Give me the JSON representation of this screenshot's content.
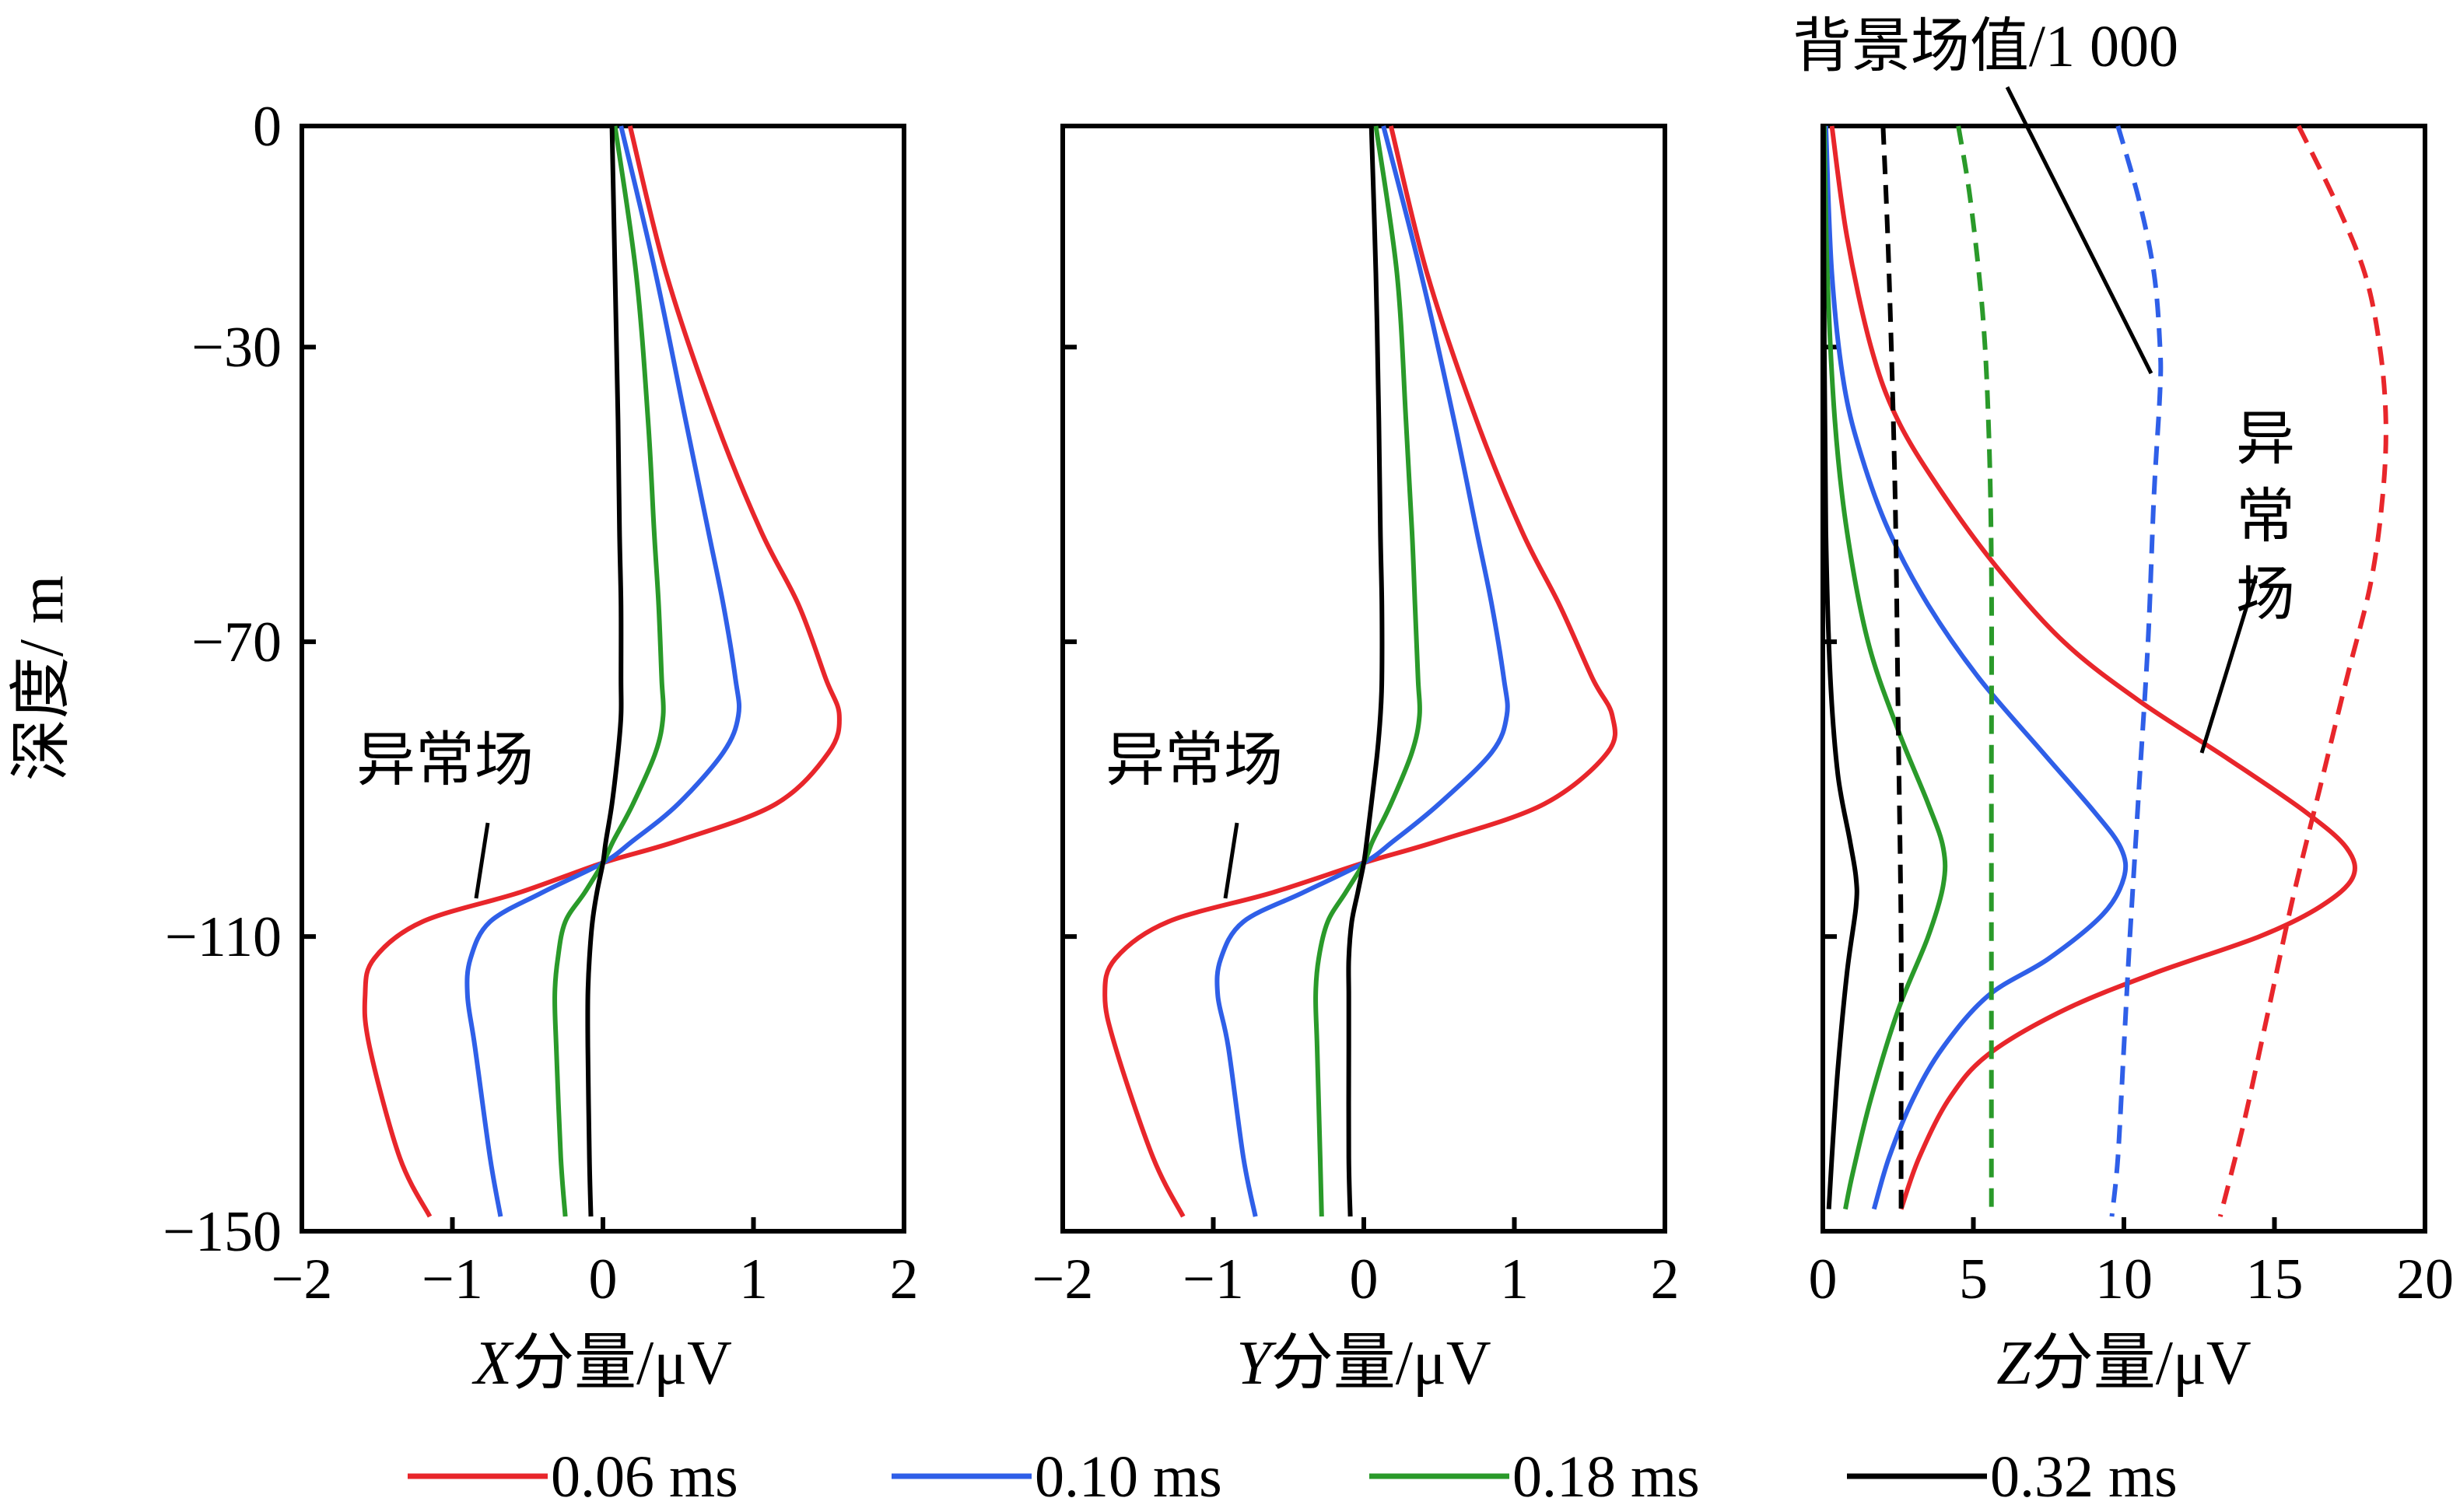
{
  "chart_data": [
    {
      "type": "line",
      "xlabel": "X分量/μV",
      "ylabel": "深度/ m",
      "xlim": [
        -2,
        2
      ],
      "ylim": [
        -150,
        0
      ],
      "xticks": [
        "−2",
        "−1",
        "0",
        "1",
        "2"
      ],
      "yticks": [
        "0",
        "−30",
        "−70",
        "−110",
        "−150"
      ],
      "annotations": [
        "异常场"
      ],
      "series": [
        {
          "name": "0.06 ms",
          "color": "#e8262b",
          "style": "solid",
          "x": [
            0.18,
            0.42,
            0.75,
            1.05,
            1.3,
            1.48,
            1.57,
            1.5,
            1.15,
            0.5,
            0.0,
            -0.55,
            -1.2,
            -1.52,
            -1.58,
            -1.55,
            -1.35,
            -1.15
          ],
          "y": [
            0,
            -20,
            -40,
            -55,
            -65,
            -75,
            -80,
            -85,
            -92,
            -97,
            -100,
            -104,
            -108,
            -113,
            -118,
            -125,
            -140,
            -148
          ]
        },
        {
          "name": "0.10 ms",
          "color": "#2f5fe8",
          "style": "solid",
          "x": [
            0.12,
            0.35,
            0.55,
            0.7,
            0.8,
            0.88,
            0.9,
            0.8,
            0.5,
            0.2,
            0.0,
            -0.4,
            -0.75,
            -0.88,
            -0.9,
            -0.85,
            -0.75,
            -0.68
          ],
          "y": [
            0,
            -20,
            -40,
            -55,
            -65,
            -75,
            -80,
            -85,
            -92,
            -97,
            -100,
            -104,
            -108,
            -113,
            -118,
            -125,
            -140,
            -148
          ]
        },
        {
          "name": "0.18 ms",
          "color": "#2a9a2a",
          "style": "solid",
          "x": [
            0.08,
            0.22,
            0.3,
            0.34,
            0.37,
            0.39,
            0.4,
            0.35,
            0.2,
            0.07,
            0.0,
            -0.12,
            -0.25,
            -0.3,
            -0.32,
            -0.31,
            -0.28,
            -0.25
          ],
          "y": [
            0,
            -20,
            -40,
            -55,
            -65,
            -75,
            -80,
            -85,
            -92,
            -97,
            -100,
            -104,
            -108,
            -113,
            -118,
            -125,
            -140,
            -148
          ]
        },
        {
          "name": "0.32 ms",
          "color": "#000000",
          "style": "solid",
          "x": [
            0.06,
            0.08,
            0.1,
            0.11,
            0.12,
            0.12,
            0.12,
            0.1,
            0.06,
            0.02,
            0.0,
            -0.04,
            -0.07,
            -0.09,
            -0.1,
            -0.1,
            -0.09,
            -0.08
          ],
          "y": [
            0,
            -20,
            -40,
            -55,
            -65,
            -75,
            -80,
            -85,
            -92,
            -97,
            -100,
            -104,
            -108,
            -113,
            -118,
            -125,
            -140,
            -148
          ]
        }
      ]
    },
    {
      "type": "line",
      "xlabel": "Y分量/μV",
      "ylabel": "",
      "xlim": [
        -2,
        2
      ],
      "ylim": [
        -150,
        0
      ],
      "xticks": [
        "−2",
        "−1",
        "0",
        "1",
        "2"
      ],
      "yticks": [],
      "annotations": [
        "异常场"
      ],
      "series": [
        {
          "name": "0.06 ms",
          "color": "#e8262b",
          "style": "solid",
          "x": [
            0.18,
            0.42,
            0.75,
            1.05,
            1.3,
            1.52,
            1.65,
            1.62,
            1.2,
            0.5,
            0.0,
            -0.6,
            -1.3,
            -1.65,
            -1.72,
            -1.65,
            -1.4,
            -1.2
          ],
          "y": [
            0,
            -20,
            -40,
            -55,
            -65,
            -75,
            -80,
            -85,
            -92,
            -97,
            -100,
            -104,
            -108,
            -113,
            -118,
            -125,
            -140,
            -148
          ]
        },
        {
          "name": "0.10 ms",
          "color": "#2f5fe8",
          "style": "solid",
          "x": [
            0.13,
            0.38,
            0.6,
            0.75,
            0.85,
            0.93,
            0.95,
            0.85,
            0.5,
            0.2,
            0.0,
            -0.4,
            -0.8,
            -0.95,
            -0.97,
            -0.9,
            -0.8,
            -0.72
          ],
          "y": [
            0,
            -20,
            -40,
            -55,
            -65,
            -75,
            -80,
            -85,
            -92,
            -97,
            -100,
            -104,
            -108,
            -113,
            -118,
            -125,
            -140,
            -148
          ]
        },
        {
          "name": "0.18 ms",
          "color": "#2a9a2a",
          "style": "solid",
          "x": [
            0.08,
            0.22,
            0.28,
            0.32,
            0.34,
            0.36,
            0.37,
            0.32,
            0.18,
            0.06,
            0.0,
            -0.12,
            -0.24,
            -0.3,
            -0.32,
            -0.31,
            -0.29,
            -0.28
          ],
          "y": [
            0,
            -20,
            -40,
            -55,
            -65,
            -75,
            -80,
            -85,
            -92,
            -97,
            -100,
            -104,
            -108,
            -113,
            -118,
            -125,
            -140,
            -148
          ]
        },
        {
          "name": "0.32 ms",
          "color": "#000000",
          "style": "solid",
          "x": [
            0.05,
            0.08,
            0.1,
            0.11,
            0.12,
            0.12,
            0.11,
            0.09,
            0.05,
            0.02,
            0.0,
            -0.04,
            -0.08,
            -0.1,
            -0.1,
            -0.1,
            -0.1,
            -0.09
          ],
          "y": [
            0,
            -20,
            -40,
            -55,
            -65,
            -75,
            -80,
            -85,
            -92,
            -97,
            -100,
            -104,
            -108,
            -113,
            -118,
            -125,
            -140,
            -148
          ]
        }
      ]
    },
    {
      "type": "line",
      "xlabel": "Z分量/μV",
      "ylabel": "",
      "xlim": [
        0,
        20
      ],
      "ylim": [
        -150,
        0
      ],
      "xticks": [
        "0",
        "5",
        "10",
        "15",
        "20"
      ],
      "yticks": [],
      "annotations": [
        "背景场值/1 000",
        "异常场"
      ],
      "series": [
        {
          "name": "0.06 ms",
          "color": "#e8262b",
          "style": "solid",
          "x": [
            0.3,
            0.8,
            1.6,
            2.5,
            4.0,
            5.8,
            8.0,
            10.5,
            13.5,
            16.0,
            17.4,
            17.6,
            16.5,
            14.5,
            11.0,
            8.0,
            5.5,
            4.2,
            3.2,
            2.6
          ],
          "y": [
            0,
            -15,
            -30,
            -40,
            -50,
            -60,
            -70,
            -78,
            -86,
            -93,
            -98,
            -102,
            -106,
            -110,
            -115,
            -120,
            -126,
            -132,
            -140,
            -147
          ]
        },
        {
          "name": "0.10 ms",
          "color": "#2f5fe8",
          "style": "solid",
          "x": [
            0.1,
            0.3,
            0.7,
            1.3,
            2.2,
            3.5,
            5.2,
            7.3,
            9.0,
            9.9,
            10.0,
            9.3,
            7.5,
            5.5,
            4.0,
            3.0,
            2.2,
            1.7
          ],
          "y": [
            0,
            -20,
            -35,
            -45,
            -55,
            -65,
            -75,
            -85,
            -93,
            -98,
            -102,
            -107,
            -113,
            -118,
            -125,
            -132,
            -140,
            -147
          ]
        },
        {
          "name": "0.18 ms",
          "color": "#2a9a2a",
          "style": "solid",
          "x": [
            0.05,
            0.15,
            0.4,
            0.8,
            1.5,
            2.5,
            3.5,
            4.0,
            4.0,
            3.5,
            2.5,
            1.6,
            1.0,
            0.75
          ],
          "y": [
            0,
            -20,
            -40,
            -55,
            -70,
            -82,
            -92,
            -98,
            -103,
            -110,
            -120,
            -132,
            -142,
            -147
          ]
        },
        {
          "name": "0.32 ms",
          "color": "#000000",
          "style": "solid",
          "x": [
            0.02,
            0.05,
            0.1,
            0.25,
            0.5,
            0.9,
            1.1,
            1.1,
            0.8,
            0.5,
            0.3,
            0.2
          ],
          "y": [
            0,
            -30,
            -55,
            -75,
            -88,
            -97,
            -102,
            -106,
            -115,
            -128,
            -140,
            -147
          ]
        },
        {
          "name": "0.06 ms 背景场值/1 000",
          "color": "#e8262b",
          "style": "dashed",
          "x": [
            15.8,
            17.0,
            18.0,
            18.5,
            18.7,
            18.6,
            18.2,
            17.4,
            16.5,
            15.6,
            14.8,
            14.0,
            13.2
          ],
          "y": [
            0,
            -10,
            -20,
            -30,
            -40,
            -50,
            -62,
            -75,
            -90,
            -105,
            -120,
            -135,
            -148
          ]
        },
        {
          "name": "0.10 ms 背景场值/1 000",
          "color": "#2f5fe8",
          "style": "dashed",
          "x": [
            9.8,
            10.5,
            11.0,
            11.2,
            11.2,
            11.0,
            10.8,
            10.5,
            10.2,
            10.0,
            9.8,
            9.6
          ],
          "y": [
            0,
            -10,
            -20,
            -30,
            -36,
            -50,
            -70,
            -90,
            -110,
            -125,
            -140,
            -148
          ]
        },
        {
          "name": "0.18 ms 背景场值/1 000",
          "color": "#2a9a2a",
          "style": "dashed",
          "x": [
            4.5,
            4.9,
            5.3,
            5.5,
            5.6,
            5.6,
            5.6,
            5.6
          ],
          "y": [
            0,
            -10,
            -25,
            -40,
            -60,
            -90,
            -120,
            -148
          ]
        },
        {
          "name": "0.32 ms 背景场值/1 000",
          "color": "#000000",
          "style": "dashed",
          "x": [
            2.0,
            2.2,
            2.4,
            2.5,
            2.6,
            2.6,
            2.6
          ],
          "y": [
            0,
            -20,
            -50,
            -80,
            -110,
            -135,
            -148
          ]
        }
      ]
    }
  ],
  "legend": [
    {
      "label": "0.06 ms",
      "color": "#e8262b"
    },
    {
      "label": "0.10 ms",
      "color": "#2f5fe8"
    },
    {
      "label": "0.18 ms",
      "color": "#2a9a2a"
    },
    {
      "label": "0.32 ms",
      "color": "#000000"
    }
  ]
}
